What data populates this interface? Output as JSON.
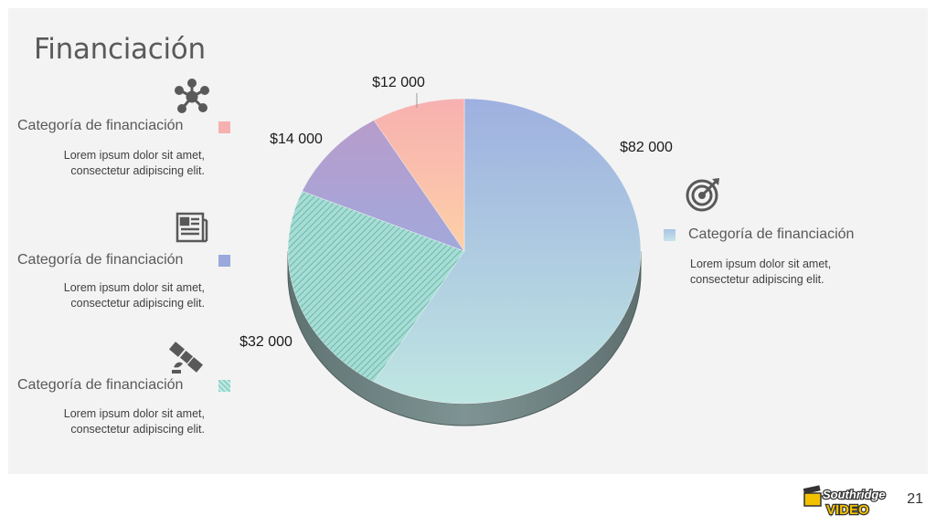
{
  "slide": {
    "title": "Financiación",
    "page_number": "21",
    "logo_text_top": "Southridge",
    "logo_text_bottom": "VIDEO"
  },
  "legend_left": [
    {
      "label": "Categoría de financiación",
      "desc_line1": "Lorem ipsum dolor sit amet,",
      "desc_line2": "consectetur adipiscing elit.",
      "icon": "network-icon",
      "swatch_color": "#f7b0b0"
    },
    {
      "label": "Categoría de financiación",
      "desc_line1": "Lorem ipsum dolor sit amet,",
      "desc_line2": "consectetur adipiscing elit.",
      "icon": "newspaper-icon",
      "swatch_color": "#9aa8dc"
    },
    {
      "label": "Categoría de financiación",
      "desc_line1": "Lorem ipsum dolor sit amet,",
      "desc_line2": "consectetur adipiscing elit.",
      "icon": "satellite-icon",
      "swatch_color": "#8fd1c6"
    }
  ],
  "legend_right": {
    "label": "Categoría de financiación",
    "desc_line1": "Lorem ipsum dolor sit amet,",
    "desc_line2": "consectetur adipiscing elit.",
    "icon": "target-icon",
    "swatch_color": "#a9c4e6"
  },
  "chart_data": {
    "type": "pie",
    "title": "",
    "start": "12 o'clock, clockwise",
    "slices": [
      {
        "value": 82000,
        "label": "$82 000",
        "fill": "gradient-blue-teal"
      },
      {
        "value": 32000,
        "label": "$32 000",
        "fill": "hatched-teal"
      },
      {
        "value": 14000,
        "label": "$14 000",
        "fill": "gradient-purple"
      },
      {
        "value": 12000,
        "label": "$12 000",
        "fill": "gradient-pink-peach"
      }
    ]
  }
}
